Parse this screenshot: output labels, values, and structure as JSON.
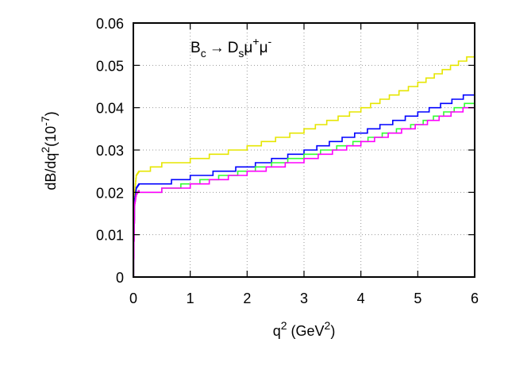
{
  "chart_data": {
    "type": "line",
    "annotation": {
      "base": "B",
      "sub1": "c",
      "arrow": "→",
      "d": "D",
      "sub2": "s",
      "mu": "μ",
      "sup_plus": "+",
      "sup_minus": "-"
    },
    "xlabel": {
      "base": "q",
      "sup": "2",
      "units_open": " (GeV",
      "units_sup": "2",
      "units_close": ")"
    },
    "ylabel": {
      "base": "dB/dq",
      "sup": "2",
      "units_open": "(10",
      "units_sup": "-7",
      "units_close": ")"
    },
    "xlim": [
      0,
      6
    ],
    "ylim": [
      0,
      0.06
    ],
    "xticks": [
      "0",
      "1",
      "2",
      "3",
      "4",
      "5",
      "6"
    ],
    "xtick_values": [
      0,
      1,
      2,
      3,
      4,
      5,
      6
    ],
    "yticks": [
      "0",
      "0.01",
      "0.02",
      "0.03",
      "0.04",
      "0.05",
      "0.06"
    ],
    "ytick_values": [
      0,
      0.01,
      0.02,
      0.03,
      0.04,
      0.05,
      0.06
    ],
    "grid": true,
    "step_size": 0.001,
    "series": [
      {
        "color": "#e6e600",
        "x": [
          0.0,
          0.02,
          0.05,
          0.1,
          0.5,
          1.0,
          2.0,
          3.0,
          4.0,
          5.0,
          6.0
        ],
        "y": [
          0.0,
          0.02,
          0.024,
          0.025,
          0.027,
          0.028,
          0.031,
          0.035,
          0.04,
          0.046,
          0.053
        ]
      },
      {
        "color": "#0000ff",
        "x": [
          0.0,
          0.02,
          0.05,
          0.1,
          0.5,
          1.0,
          2.0,
          3.0,
          4.0,
          5.0,
          6.0
        ],
        "y": [
          0.0,
          0.018,
          0.021,
          0.022,
          0.0225,
          0.024,
          0.0265,
          0.03,
          0.0345,
          0.039,
          0.044
        ]
      },
      {
        "color": "#33ff33",
        "x": [
          0.0,
          0.02,
          0.05,
          0.1,
          0.5,
          1.0,
          2.0,
          3.0,
          4.0,
          5.0,
          6.0
        ],
        "y": [
          0.0,
          0.017,
          0.0195,
          0.0205,
          0.021,
          0.0225,
          0.0255,
          0.029,
          0.0325,
          0.0365,
          0.042
        ]
      },
      {
        "color": "#ff00ff",
        "x": [
          0.0,
          0.02,
          0.05,
          0.1,
          0.5,
          1.0,
          2.0,
          3.0,
          4.0,
          5.0,
          6.0
        ],
        "y": [
          0.0,
          0.017,
          0.0195,
          0.0205,
          0.021,
          0.022,
          0.025,
          0.028,
          0.032,
          0.0362,
          0.041
        ]
      }
    ]
  }
}
